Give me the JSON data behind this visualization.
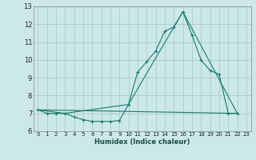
{
  "xlabel": "Humidex (Indice chaleur)",
  "bg_color": "#cce8e8",
  "grid_color": "#aacccc",
  "line_color": "#1a7a6e",
  "xlim": [
    -0.5,
    23.5
  ],
  "ylim": [
    6,
    13
  ],
  "yticks": [
    6,
    7,
    8,
    9,
    10,
    11,
    12,
    13
  ],
  "xticks": [
    0,
    1,
    2,
    3,
    4,
    5,
    6,
    7,
    8,
    9,
    10,
    11,
    12,
    13,
    14,
    15,
    16,
    17,
    18,
    19,
    20,
    21,
    22,
    23
  ],
  "curve1_x": [
    0,
    1,
    2,
    3,
    4,
    5,
    6,
    7,
    8,
    9,
    10,
    11,
    12,
    13,
    14,
    15,
    16,
    17,
    18,
    19,
    20,
    21,
    22
  ],
  "curve1_y": [
    7.2,
    7.0,
    7.0,
    7.0,
    6.8,
    6.65,
    6.55,
    6.55,
    6.55,
    6.6,
    7.5,
    9.3,
    9.9,
    10.5,
    11.6,
    11.85,
    12.7,
    11.4,
    10.0,
    9.4,
    9.2,
    7.0,
    7.0
  ],
  "curve2_x": [
    0,
    3,
    10,
    16,
    22
  ],
  "curve2_y": [
    7.2,
    7.0,
    7.5,
    12.7,
    7.0
  ],
  "curve3_x": [
    0,
    22
  ],
  "curve3_y": [
    7.2,
    7.0
  ]
}
